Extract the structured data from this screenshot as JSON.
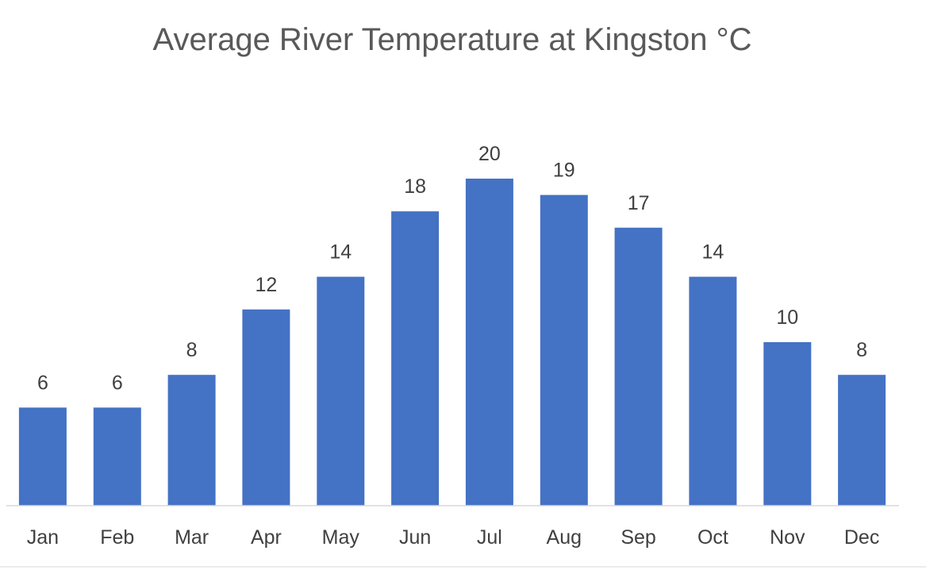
{
  "chart_data": {
    "type": "bar",
    "title": "Average River Temperature at Kingston °C",
    "xlabel": "",
    "ylabel": "",
    "categories": [
      "Jan",
      "Feb",
      "Mar",
      "Apr",
      "May",
      "Jun",
      "Jul",
      "Aug",
      "Sep",
      "Oct",
      "Nov",
      "Dec"
    ],
    "values": [
      6,
      6,
      8,
      12,
      14,
      18,
      20,
      19,
      17,
      14,
      10,
      8
    ],
    "data_labels": [
      "6",
      "6",
      "8",
      "12",
      "14",
      "18",
      "20",
      "19",
      "17",
      "14",
      "10",
      "8"
    ],
    "grid": false,
    "legend": "none",
    "colors": {
      "bar": "#4472C4",
      "axis": "#D9D9D9",
      "text": "#404040",
      "title": "#595959"
    }
  }
}
